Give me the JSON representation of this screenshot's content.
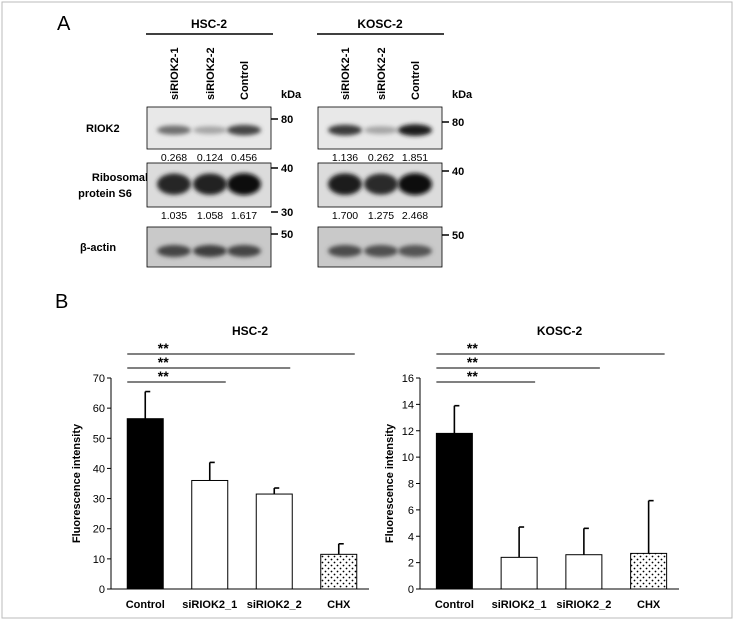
{
  "panel_a": {
    "label": "A",
    "kda_label": "kDa",
    "blots": [
      {
        "cell_line": "HSC-2",
        "lanes": [
          "siRIOK2-1",
          "siRIOK2-2",
          "Control"
        ],
        "rows": [
          {
            "protein": "RIOK2",
            "markers": [
              "80"
            ],
            "quant": [
              "0.268",
              "0.124",
              "0.456"
            ],
            "intensity": [
              0.55,
              0.3,
              0.75
            ]
          },
          {
            "protein": "Ribosomal protein S6",
            "markers": [
              "40",
              "30"
            ],
            "quant": [
              "1.035",
              "1.058",
              "1.617"
            ],
            "intensity": [
              0.9,
              0.92,
              1.0
            ]
          },
          {
            "protein": "β-actin",
            "markers": [
              "50"
            ],
            "quant": [],
            "intensity": [
              0.75,
              0.78,
              0.75
            ]
          }
        ]
      },
      {
        "cell_line": "KOSC-2",
        "lanes": [
          "siRIOK2-1",
          "siRIOK2-2",
          "Control"
        ],
        "rows": [
          {
            "protein": "RIOK2",
            "markers": [
              "80"
            ],
            "quant": [
              "1.136",
              "0.262",
              "1.851"
            ],
            "intensity": [
              0.8,
              0.3,
              0.95
            ]
          },
          {
            "protein": "Ribosomal protein S6",
            "markers": [
              "40"
            ],
            "quant": [
              "1.700",
              "1.275",
              "2.468"
            ],
            "intensity": [
              0.95,
              0.88,
              1.0
            ]
          },
          {
            "protein": "β-actin",
            "markers": [
              "50"
            ],
            "quant": [],
            "intensity": [
              0.72,
              0.7,
              0.68
            ]
          }
        ]
      }
    ]
  },
  "panel_b": {
    "label": "B"
  },
  "chart_data": [
    {
      "type": "bar",
      "title": "HSC-2",
      "ylabel": "Fluorescence intensity",
      "xlabel": "",
      "categories": [
        "Control",
        "siRIOK2_1",
        "siRIOK2_2",
        "CHX"
      ],
      "values": [
        56.5,
        36,
        31.5,
        11.5
      ],
      "errors": [
        9,
        6,
        2,
        3.5
      ],
      "bar_styles": [
        "black",
        "white",
        "white",
        "dotted"
      ],
      "ylim": [
        0,
        70
      ],
      "yticks": [
        "0",
        "10",
        "20",
        "30",
        "40",
        "50",
        "60",
        "70"
      ],
      "significance": [
        {
          "from": 0,
          "to": 1,
          "label": "**"
        },
        {
          "from": 0,
          "to": 2,
          "label": "**"
        },
        {
          "from": 0,
          "to": 3,
          "label": "**"
        }
      ]
    },
    {
      "type": "bar",
      "title": "KOSC-2",
      "ylabel": "Fluorescence intensity",
      "xlabel": "",
      "categories": [
        "Control",
        "siRIOK2_1",
        "siRIOK2_2",
        "CHX"
      ],
      "values": [
        11.8,
        2.4,
        2.6,
        2.7
      ],
      "errors": [
        2.1,
        2.3,
        2.0,
        4.0
      ],
      "bar_styles": [
        "black",
        "white",
        "white",
        "dotted"
      ],
      "ylim": [
        0,
        16
      ],
      "yticks": [
        "0",
        "2",
        "4",
        "6",
        "8",
        "10",
        "12",
        "14",
        "16"
      ],
      "significance": [
        {
          "from": 0,
          "to": 1,
          "label": "**"
        },
        {
          "from": 0,
          "to": 2,
          "label": "**"
        },
        {
          "from": 0,
          "to": 3,
          "label": "**"
        }
      ]
    }
  ]
}
